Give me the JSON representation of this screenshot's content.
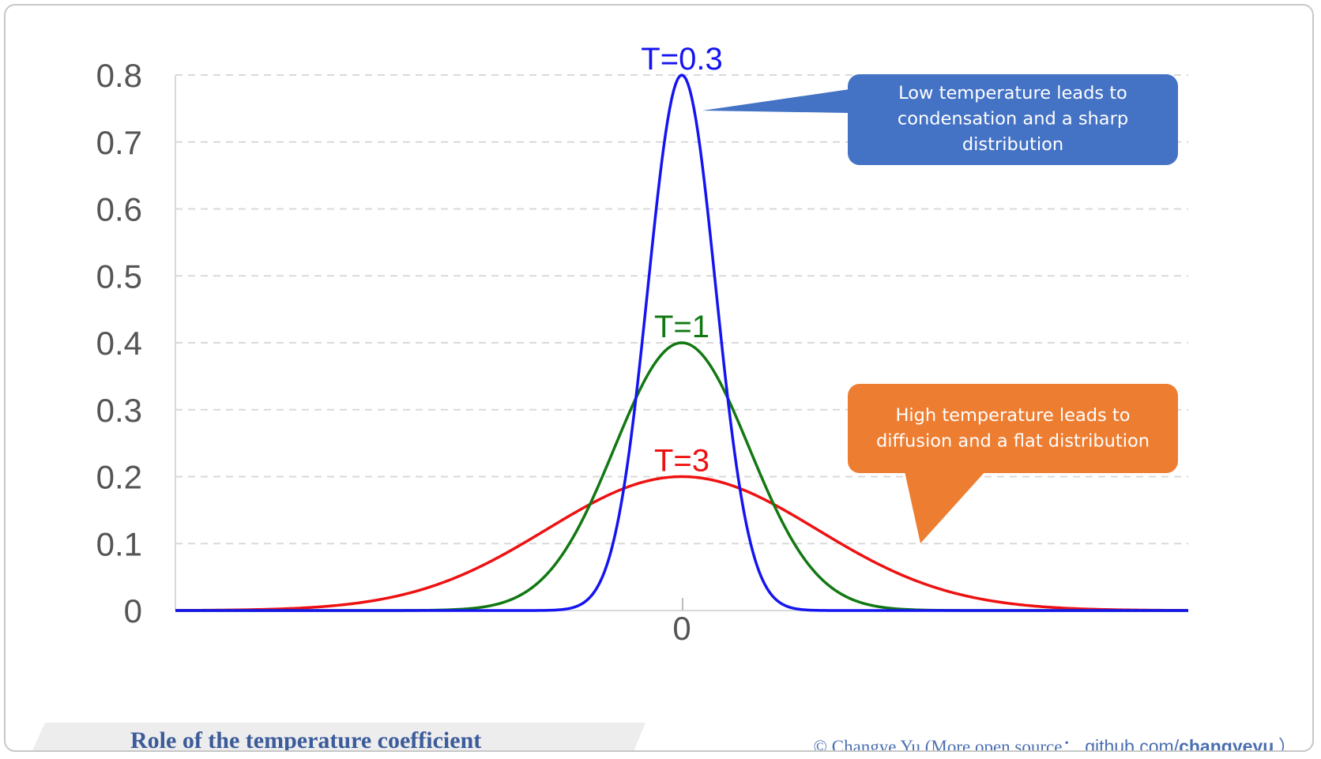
{
  "chart_data": {
    "type": "line",
    "title": "",
    "xlabel": "",
    "ylabel": "",
    "x_ticks": [
      "0"
    ],
    "y_ticks": [
      "0",
      "0.1",
      "0.2",
      "0.3",
      "0.4",
      "0.5",
      "0.6",
      "0.7",
      "0.8"
    ],
    "ylim": [
      0,
      0.8
    ],
    "xlim": [
      -7.5,
      7.5
    ],
    "grid": "horizontal dashed",
    "series": [
      {
        "name": "T=0.3",
        "color": "#1414f0",
        "distribution": "normal",
        "mean": 0,
        "std": 0.5,
        "peak": 0.8
      },
      {
        "name": "T=1",
        "color": "#127812",
        "distribution": "normal",
        "mean": 0,
        "std": 1.0,
        "peak": 0.4
      },
      {
        "name": "T=3",
        "color": "#ee1111",
        "distribution": "normal",
        "mean": 0,
        "std": 2.0,
        "peak": 0.2
      }
    ],
    "annotations": [
      {
        "text": [
          "Low temperature leads to",
          "condensation and a sharp",
          "distribution"
        ],
        "color": "#4472c4",
        "points_to": "T=0.3"
      },
      {
        "text": [
          "High temperature leads to",
          "diffusion and a flat distribution"
        ],
        "color": "#ed7d31",
        "points_to": "T=3"
      }
    ]
  },
  "footer": {
    "caption": "Role of  the temperature coefficient",
    "credit_prefix": "© Changye Yu  (More open source：",
    "credit_link_plain": "github.com/",
    "credit_link_bold": "changyeyu",
    "credit_suffix": "）"
  }
}
